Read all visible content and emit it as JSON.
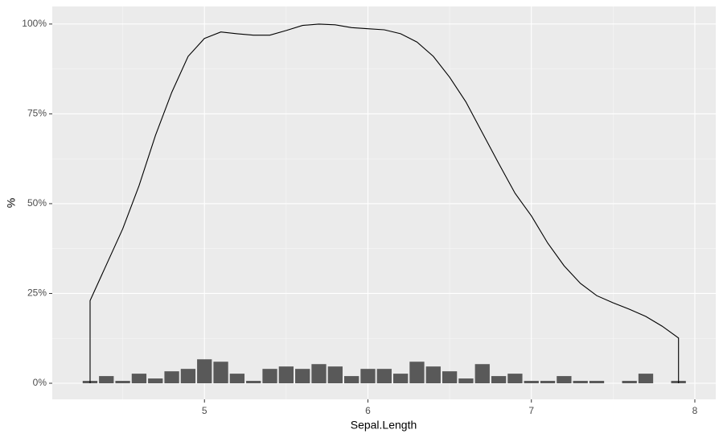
{
  "chart_data": {
    "type": "bar",
    "x_label": "Sepal.Length",
    "y_label": "%",
    "x": [
      4.3,
      4.4,
      4.5,
      4.6,
      4.7,
      4.8,
      4.9,
      5.0,
      5.1,
      5.2,
      5.3,
      5.4,
      5.5,
      5.6,
      5.7,
      5.8,
      5.9,
      6.0,
      6.1,
      6.2,
      6.3,
      6.4,
      6.5,
      6.6,
      6.7,
      6.8,
      6.9,
      7.0,
      7.1,
      7.2,
      7.3,
      7.4,
      7.6,
      7.7,
      7.9
    ],
    "values": [
      0.67,
      2,
      0.67,
      2.67,
      1.33,
      3.33,
      4,
      6.67,
      6,
      2.67,
      0.67,
      4,
      4.67,
      4,
      5.33,
      4.67,
      2,
      4,
      4,
      2.67,
      6,
      4.67,
      3.33,
      1.33,
      5.33,
      2,
      2.67,
      0.67,
      0.67,
      2,
      0.67,
      0.67,
      0.67,
      2.67,
      0.67
    ],
    "color": "#595959",
    "line": {
      "color": "#000000",
      "x": [
        4.3,
        4.3,
        4.4,
        4.5,
        4.6,
        4.7,
        4.8,
        4.9,
        5.0,
        5.1,
        5.2,
        5.3,
        5.4,
        5.5,
        5.6,
        5.7,
        5.8,
        5.9,
        6.0,
        6.1,
        6.2,
        6.3,
        6.4,
        6.5,
        6.6,
        6.7,
        6.8,
        6.9,
        7.0,
        7.1,
        7.2,
        7.3,
        7.4,
        7.5,
        7.6,
        7.7,
        7.8,
        7.9,
        7.9
      ],
      "values": [
        0,
        23,
        33,
        43,
        55,
        69,
        81,
        91,
        96,
        97.8,
        97.3,
        96.9,
        96.9,
        98.2,
        99.6,
        100,
        99.8,
        99,
        98.7,
        98.4,
        97.3,
        95,
        91,
        85.2,
        78.3,
        69.7,
        61.2,
        52.9,
        46.6,
        39,
        32.7,
        27.8,
        24.4,
        22.4,
        20.6,
        18.6,
        15.9,
        12.6,
        0
      ]
    },
    "xlim": [
      4.069,
      8.128
    ],
    "ylim": [
      -4.48,
      104.9
    ],
    "xticks": [
      5,
      6,
      7,
      8
    ],
    "yticks": [
      {
        "value": 0,
        "label": "0%"
      },
      {
        "value": 25,
        "label": "25%"
      },
      {
        "value": 50,
        "label": "50%"
      },
      {
        "value": 75,
        "label": "75%"
      },
      {
        "value": 100,
        "label": "100%"
      }
    ],
    "grid": true
  }
}
